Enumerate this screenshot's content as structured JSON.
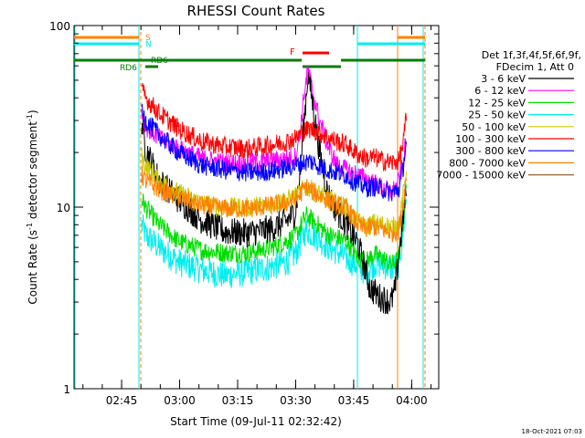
{
  "chart_data": {
    "type": "line",
    "title": "RHESSI Count Rates",
    "xlabel": "Start Time (09-Jul-11 02:32:42)",
    "ylabel_main": "Count Rate (s",
    "ylabel_sup1": "-1",
    "ylabel_mid": " detector segment",
    "ylabel_sup2": "-1",
    "ylabel_end": ")",
    "yscale": "log",
    "ylim": [
      1,
      100
    ],
    "xlim_minutes": [
      0,
      94.3
    ],
    "x_ticks": [
      {
        "label": "02:45",
        "minutes": 12.3
      },
      {
        "label": "03:00",
        "minutes": 27.3
      },
      {
        "label": "03:15",
        "minutes": 42.3
      },
      {
        "label": "03:30",
        "minutes": 57.3
      },
      {
        "label": "03:45",
        "minutes": 72.3
      },
      {
        "label": "04:00",
        "minutes": 87.3
      }
    ],
    "y_ticks": [
      {
        "label": "1",
        "value": 1
      },
      {
        "label": "10",
        "value": 10
      },
      {
        "label": "100",
        "value": 100
      }
    ],
    "legend_title_1": "Det 1f,3f,4f,5f,6f,9f,",
    "legend_title_2": "FDecim 1, Att 0",
    "series": [
      {
        "name": "3 - 6 keV",
        "color": "#000000",
        "points": [
          [
            17.5,
            30
          ],
          [
            18.5,
            21
          ],
          [
            22,
            14
          ],
          [
            27,
            11
          ],
          [
            33,
            8.5
          ],
          [
            39,
            7.3
          ],
          [
            45,
            7.2
          ],
          [
            51,
            7.6
          ],
          [
            55,
            8.4
          ],
          [
            57.3,
            9.5
          ],
          [
            58.5,
            16
          ],
          [
            59.5,
            30
          ],
          [
            60.5,
            55
          ],
          [
            61.5,
            40
          ],
          [
            63.5,
            20
          ],
          [
            65.5,
            12
          ],
          [
            68,
            9.5
          ],
          [
            70.5,
            8
          ],
          [
            73.5,
            6.2
          ],
          [
            75,
            4.8
          ],
          [
            76.5,
            3.6
          ],
          [
            79,
            3.2
          ],
          [
            82,
            3.0
          ],
          [
            83,
            3.5
          ],
          [
            85,
            8.5
          ],
          [
            86,
            13
          ]
        ]
      },
      {
        "name": "6 - 12 keV",
        "color": "#ff00ff",
        "points": [
          [
            17.5,
            34
          ],
          [
            18.5,
            28
          ],
          [
            22,
            24
          ],
          [
            27,
            21
          ],
          [
            33,
            18.5
          ],
          [
            39,
            17.5
          ],
          [
            45,
            17.5
          ],
          [
            51,
            18
          ],
          [
            55,
            18.5
          ],
          [
            57.3,
            19
          ],
          [
            58.5,
            26
          ],
          [
            59.5,
            42
          ],
          [
            60.5,
            58
          ],
          [
            61.5,
            45
          ],
          [
            63.5,
            30
          ],
          [
            65.5,
            22
          ],
          [
            68,
            17
          ],
          [
            70.5,
            16
          ],
          [
            73.5,
            15
          ],
          [
            76.5,
            14
          ],
          [
            79,
            13
          ],
          [
            82,
            12
          ],
          [
            83.5,
            13
          ],
          [
            85,
            17
          ],
          [
            86,
            25
          ]
        ]
      },
      {
        "name": "12 - 25 keV",
        "color": "#00dd00",
        "points": [
          [
            17.5,
            11
          ],
          [
            18.5,
            10
          ],
          [
            22,
            8
          ],
          [
            27,
            6.5
          ],
          [
            33,
            5.8
          ],
          [
            39,
            5.6
          ],
          [
            45,
            5.6
          ],
          [
            51,
            6
          ],
          [
            55,
            6.5
          ],
          [
            57.3,
            7
          ],
          [
            60,
            9
          ],
          [
            63,
            8
          ],
          [
            66,
            7
          ],
          [
            68,
            6.8
          ],
          [
            70.5,
            6.5
          ],
          [
            72,
            5.8
          ],
          [
            73.5,
            5.2
          ],
          [
            75.5,
            5
          ],
          [
            77.5,
            5.5
          ],
          [
            80,
            5.2
          ],
          [
            82,
            4.8
          ],
          [
            84,
            5.2
          ],
          [
            85,
            8
          ],
          [
            86,
            14
          ]
        ]
      },
      {
        "name": "25 - 50 keV",
        "color": "#00eeee",
        "points": [
          [
            17.5,
            8
          ],
          [
            18.5,
            7
          ],
          [
            22,
            6
          ],
          [
            27,
            5
          ],
          [
            33,
            4.5
          ],
          [
            39,
            4.2
          ],
          [
            45,
            4.4
          ],
          [
            51,
            4.7
          ],
          [
            55,
            5
          ],
          [
            57.3,
            5.6
          ],
          [
            60,
            7.5
          ],
          [
            63,
            6.8
          ],
          [
            66,
            6
          ],
          [
            68,
            5.7
          ],
          [
            70.5,
            5.2
          ],
          [
            72,
            5
          ],
          [
            73.5,
            4.7
          ],
          [
            75.5,
            4.4
          ],
          [
            77.5,
            4.9
          ],
          [
            80,
            4.8
          ],
          [
            82,
            4.6
          ],
          [
            84,
            4.9
          ],
          [
            85,
            7
          ],
          [
            86,
            12
          ]
        ]
      },
      {
        "name": "50 - 100 keV",
        "color": "#cccc00",
        "points": [
          [
            17.5,
            19
          ],
          [
            18.5,
            17
          ],
          [
            22,
            14
          ],
          [
            27,
            12
          ],
          [
            33,
            10.5
          ],
          [
            39,
            10
          ],
          [
            45,
            10
          ],
          [
            51,
            10.5
          ],
          [
            55,
            11
          ],
          [
            57.3,
            11.5
          ],
          [
            60,
            13
          ],
          [
            63,
            12
          ],
          [
            66,
            11
          ],
          [
            68,
            10.5
          ],
          [
            70.5,
            10
          ],
          [
            72,
            9
          ],
          [
            73.5,
            8.3
          ],
          [
            75.5,
            7.8
          ],
          [
            77.5,
            8.2
          ],
          [
            80,
            8
          ],
          [
            82,
            7.8
          ],
          [
            84,
            8
          ],
          [
            85,
            11
          ],
          [
            86,
            17
          ]
        ]
      },
      {
        "name": "100 - 300 keV",
        "color": "#ff0000",
        "points": [
          [
            17.5,
            44
          ],
          [
            18.5,
            40
          ],
          [
            22,
            33
          ],
          [
            27,
            27
          ],
          [
            33,
            23
          ],
          [
            39,
            21.5
          ],
          [
            45,
            21
          ],
          [
            51,
            22
          ],
          [
            55,
            23
          ],
          [
            57.3,
            24
          ],
          [
            59,
            26
          ],
          [
            61,
            27
          ],
          [
            63,
            26
          ],
          [
            66,
            24
          ],
          [
            68,
            23
          ],
          [
            70.5,
            22
          ],
          [
            72,
            20.5
          ],
          [
            73.5,
            19.5
          ],
          [
            75.5,
            18.5
          ],
          [
            77.5,
            18.8
          ],
          [
            80,
            18
          ],
          [
            82,
            17.5
          ],
          [
            84,
            18
          ],
          [
            85,
            22
          ],
          [
            86,
            32
          ]
        ]
      },
      {
        "name": "300 - 800 keV",
        "color": "#0000ff",
        "points": [
          [
            17.5,
            33
          ],
          [
            18.5,
            30
          ],
          [
            22,
            25
          ],
          [
            27,
            20
          ],
          [
            33,
            17
          ],
          [
            39,
            16
          ],
          [
            45,
            15.5
          ],
          [
            51,
            15.8
          ],
          [
            55,
            16.5
          ],
          [
            57.3,
            17
          ],
          [
            59,
            17.5
          ],
          [
            61,
            18
          ],
          [
            63,
            17
          ],
          [
            66,
            16
          ],
          [
            68,
            15.5
          ],
          [
            70.5,
            15
          ],
          [
            72,
            14
          ],
          [
            73.5,
            13.5
          ],
          [
            75.5,
            12.8
          ],
          [
            77.5,
            13
          ],
          [
            80,
            12.5
          ],
          [
            82,
            12
          ],
          [
            84,
            12.5
          ],
          [
            85,
            16
          ],
          [
            86,
            24
          ]
        ]
      },
      {
        "name": "800 - 7000 keV",
        "color": "#ff8000",
        "points": [
          [
            17.5,
            15
          ],
          [
            18.5,
            14
          ],
          [
            22,
            12.5
          ],
          [
            27,
            11.3
          ],
          [
            33,
            10.2
          ],
          [
            39,
            9.8
          ],
          [
            45,
            9.8
          ],
          [
            51,
            10.2
          ],
          [
            55,
            10.6
          ],
          [
            57.3,
            11
          ],
          [
            60,
            13
          ],
          [
            62,
            12
          ],
          [
            64,
            11.5
          ],
          [
            66,
            10.8
          ],
          [
            68,
            10.3
          ],
          [
            70.5,
            9.8
          ],
          [
            72,
            8.8
          ],
          [
            73.5,
            8
          ],
          [
            75.5,
            7.6
          ],
          [
            77.5,
            7.8
          ],
          [
            80,
            7.5
          ],
          [
            82,
            7.2
          ],
          [
            84,
            7.5
          ],
          [
            85,
            10
          ],
          [
            86,
            15
          ]
        ]
      },
      {
        "name": "7000 - 15000 keV",
        "color": "#996633",
        "points": []
      }
    ],
    "annotations": [
      {
        "label": "S",
        "color": "#ff8000"
      },
      {
        "label": "N",
        "color": "#00eeee"
      },
      {
        "label": "F",
        "color": "#ff0000"
      },
      {
        "label": "RD6",
        "color": "#008000"
      },
      {
        "label": "RD6",
        "color": "#008000"
      }
    ],
    "footer_date": "18-Oct-2021 07:03"
  }
}
